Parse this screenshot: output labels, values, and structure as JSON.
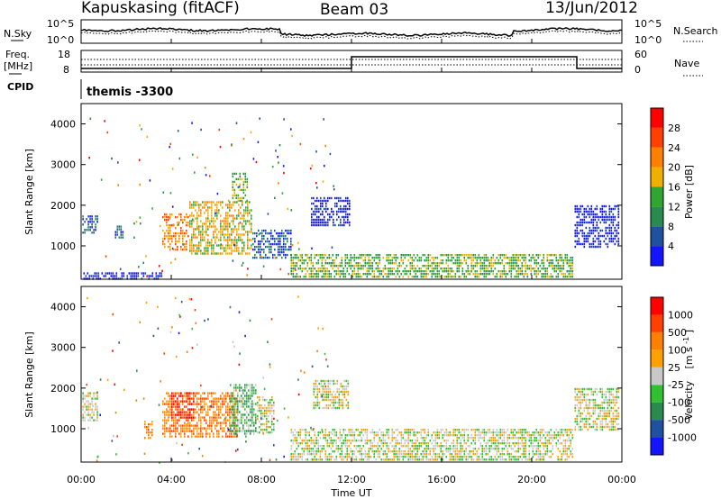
{
  "header": {
    "station": "Kapuskasing (fitACF)",
    "beam": "Beam 03",
    "date": "13/Jun/2012"
  },
  "nsky_panel": {
    "left_label": "N.Sky",
    "left_ticks": [
      "10^5",
      "10^0"
    ],
    "right_ticks": [
      "10^5",
      "10^0"
    ],
    "right_label": "N.Search"
  },
  "freq_panel": {
    "left_label_1": "Freq.",
    "left_label_2": "[MHz]",
    "left_ticks": [
      "18",
      "8"
    ],
    "right_ticks": [
      "60",
      "0"
    ],
    "right_label": "Nave"
  },
  "cpid_panel": {
    "label": "CPID",
    "program": "themis -3300"
  },
  "colors": {
    "power_scale": [
      "#1414ff",
      "#2050a0",
      "#2a8a50",
      "#30a630",
      "#f0b000",
      "#ff8000",
      "#ff4000",
      "#ff0000"
    ],
    "velocity_scale": [
      "#1414ff",
      "#2050a0",
      "#2a8a50",
      "#30c030",
      "#c8c8c8",
      "#ffa000",
      "#ff8000",
      "#ff4000",
      "#ff0000"
    ],
    "ground_scatter": "#c8c8c8"
  },
  "chart_data": [
    {
      "type": "heatmap",
      "name": "power",
      "xlabel": "",
      "ylabel": "Slant Range [km]",
      "xlim": [
        0,
        24
      ],
      "ylim": [
        180,
        4500
      ],
      "y_ticks": [
        1000,
        2000,
        3000,
        4000
      ],
      "x_ticks_hours": [
        0,
        4,
        8,
        12,
        16,
        20,
        24
      ],
      "colorbar_label": "Power [dB]",
      "colorbar_ticks": [
        "4",
        "8",
        "12",
        "16",
        "20",
        "24",
        "28"
      ],
      "regions": [
        {
          "t0": 0.05,
          "t1": 0.75,
          "r0": 1300,
          "r1": 1750,
          "level": 1
        },
        {
          "t0": 1.5,
          "t1": 1.9,
          "r0": 1200,
          "r1": 1500,
          "level": 1
        },
        {
          "t0": 3.6,
          "t1": 4.8,
          "r0": 900,
          "r1": 1800,
          "level": 5
        },
        {
          "t0": 4.8,
          "t1": 7.6,
          "r0": 800,
          "r1": 2100,
          "level": 4
        },
        {
          "t0": 6.7,
          "t1": 7.4,
          "r0": 2100,
          "r1": 2800,
          "level": 3
        },
        {
          "t0": 7.6,
          "t1": 9.3,
          "r0": 700,
          "r1": 1400,
          "level": 1
        },
        {
          "t0": 10.2,
          "t1": 11.9,
          "r0": 1500,
          "r1": 2200,
          "level": 0
        },
        {
          "t0": 9.3,
          "t1": 21.8,
          "r0": 250,
          "r1": 800,
          "level": 3
        },
        {
          "t0": 21.9,
          "t1": 23.9,
          "r0": 1000,
          "r1": 2000,
          "level": 0
        },
        {
          "t0": 0.1,
          "t1": 3.6,
          "r0": 200,
          "r1": 350,
          "level": 0
        }
      ]
    },
    {
      "type": "heatmap",
      "name": "velocity",
      "xlabel": "Time UT",
      "ylabel": "Slant Range [km]",
      "xlim": [
        0,
        24
      ],
      "ylim": [
        180,
        4500
      ],
      "y_ticks": [
        1000,
        2000,
        3000,
        4000
      ],
      "x_ticks": [
        "00:00",
        "04:00",
        "08:00",
        "12:00",
        "16:00",
        "20:00",
        "00:00"
      ],
      "colorbar_label": "Velocity [m s^-1]",
      "colorbar_ticks": [
        "1000",
        "500",
        "100",
        "25",
        "-25",
        "-100",
        "-500",
        "-1000"
      ],
      "regions": [
        {
          "t0": 0.05,
          "t1": 0.75,
          "r0": 1200,
          "r1": 1900,
          "level": 4
        },
        {
          "t0": 2.8,
          "t1": 3.2,
          "r0": 800,
          "r1": 1200,
          "level": 6
        },
        {
          "t0": 3.6,
          "t1": 6.9,
          "r0": 800,
          "r1": 1900,
          "level": 6
        },
        {
          "t0": 4.0,
          "t1": 5.0,
          "r0": 1300,
          "r1": 1900,
          "level": 8
        },
        {
          "t0": 6.6,
          "t1": 7.8,
          "r0": 900,
          "r1": 2100,
          "level": 3
        },
        {
          "t0": 7.8,
          "t1": 8.6,
          "r0": 900,
          "r1": 1800,
          "level": 4
        },
        {
          "t0": 10.3,
          "t1": 11.9,
          "r0": 1500,
          "r1": 2200,
          "level": 4
        },
        {
          "t0": 9.3,
          "t1": 21.8,
          "r0": 250,
          "r1": 1000,
          "level": 4
        },
        {
          "t0": 21.9,
          "t1": 23.9,
          "r0": 1000,
          "r1": 2000,
          "level": 4
        }
      ]
    }
  ],
  "axis_labels": {
    "x_title": "Time UT",
    "y_title": "Slant Range [km]",
    "power_bar": "Power [dB]",
    "vel_bar_main": "Velocity",
    "vel_bar_unit": "[m s",
    "vel_bar_exp": "-1",
    "vel_bar_close": "]"
  }
}
